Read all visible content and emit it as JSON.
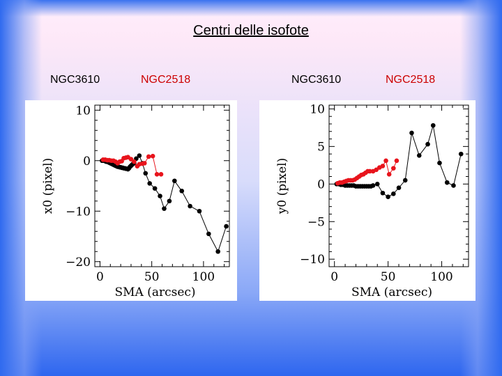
{
  "slide": {
    "title": "Centri delle isofote"
  },
  "labels": [
    {
      "text": "NGC3610",
      "color": "#000000"
    },
    {
      "text": "NGC2518",
      "color": "#cc0000"
    },
    {
      "text": "NGC3610",
      "color": "#000000"
    },
    {
      "text": "NGC2518",
      "color": "#cc0000"
    }
  ],
  "colors": {
    "series_ngc3610": "#000000",
    "series_ngc2518": "#e8141c"
  },
  "chart_data": [
    {
      "type": "scatter",
      "title": "",
      "xlabel": "SMA  (arcsec)",
      "ylabel": "x0  (pixel)",
      "xlim": [
        -5,
        125
      ],
      "ylim": [
        -21,
        11
      ],
      "xticks": [
        0,
        50,
        100
      ],
      "yticks": [
        10,
        0,
        -10,
        -20
      ],
      "ytick_labels": [
        "10",
        "0",
        "−10",
        "−20"
      ],
      "series": [
        {
          "name": "NGC3610",
          "color": "#000000",
          "x": [
            2,
            3,
            4,
            5,
            6,
            7,
            8,
            9,
            10,
            11,
            12,
            13,
            14,
            15,
            16,
            17,
            18,
            19,
            20,
            21,
            22,
            23,
            24,
            25,
            26,
            27,
            28,
            29,
            30,
            31,
            32,
            33,
            35,
            38,
            41,
            44,
            48,
            53,
            58,
            62,
            67,
            72,
            79,
            87,
            96,
            105,
            114,
            122
          ],
          "y": [
            0,
            0,
            0,
            -0.1,
            -0.2,
            -0.2,
            -0.3,
            -0.4,
            -0.5,
            -0.6,
            -0.7,
            -0.8,
            -0.9,
            -1,
            -1.1,
            -1.2,
            -1.2,
            -1.3,
            -1.3,
            -1.4,
            -1.4,
            -1.5,
            -1.5,
            -1.6,
            -1.6,
            -1.7,
            -1.5,
            -1.2,
            -1.0,
            -0.8,
            -0.6,
            -0.5,
            0.4,
            1.0,
            -0.5,
            -2.5,
            -4.5,
            -5.5,
            -7.0,
            -9.5,
            -8.0,
            -4.0,
            -6.0,
            -9.0,
            -10.0,
            -14.5,
            -18.0,
            -13.0
          ],
          "linestyle": "solid"
        },
        {
          "name": "NGC2518",
          "color": "#e8141c",
          "x": [
            3,
            5,
            7,
            9,
            11,
            13,
            15,
            17,
            19,
            21,
            23,
            25,
            27,
            30,
            33,
            36,
            38,
            41,
            43,
            47,
            51,
            55,
            59
          ],
          "y": [
            0.2,
            0.2,
            0.1,
            0.1,
            0,
            0,
            -0.2,
            -0.5,
            -0.2,
            -0.1,
            0.5,
            0.6,
            0.7,
            0.3,
            -0.2,
            -1.1,
            -0.7,
            -0.6,
            -0.5,
            0.8,
            0.9,
            -2.7,
            -2.7
          ],
          "linestyle": "solid"
        }
      ]
    },
    {
      "type": "scatter",
      "title": "",
      "xlabel": "SMA  (arcsec)",
      "ylabel": "y0  (pixel)",
      "xlim": [
        -5,
        125
      ],
      "ylim": [
        -11,
        10.5
      ],
      "xticks": [
        0,
        50,
        100
      ],
      "yticks": [
        10,
        5,
        0,
        -5,
        -10
      ],
      "ytick_labels": [
        "10",
        "5",
        "0",
        "−5",
        "−10"
      ],
      "series": [
        {
          "name": "NGC3610",
          "color": "#000000",
          "x": [
            2,
            4,
            6,
            8,
            10,
            12,
            14,
            16,
            18,
            20,
            22,
            24,
            26,
            28,
            30,
            32,
            34,
            36,
            40,
            45,
            50,
            55,
            60,
            66,
            72,
            79,
            87,
            92,
            98,
            105,
            111,
            118
          ],
          "y": [
            0,
            0,
            -0.1,
            -0.1,
            -0.2,
            -0.2,
            -0.2,
            -0.2,
            -0.2,
            -0.3,
            -0.3,
            -0.3,
            -0.3,
            -0.3,
            -0.3,
            -0.3,
            -0.3,
            -0.2,
            0,
            -1.2,
            -1.7,
            -1.3,
            -0.5,
            0.5,
            6.8,
            3.8,
            5.3,
            7.8,
            2.8,
            0.2,
            -0.2,
            4.0
          ],
          "linestyle": "solid"
        },
        {
          "name": "NGC2518",
          "color": "#e8141c",
          "x": [
            3,
            5,
            7,
            9,
            11,
            13,
            15,
            17,
            19,
            21,
            23,
            25,
            27,
            29,
            31,
            33,
            36,
            39,
            42,
            45,
            48,
            51,
            55,
            58
          ],
          "y": [
            0.1,
            0.2,
            0.2,
            0.3,
            0.4,
            0.5,
            0.5,
            0.5,
            0.6,
            0.8,
            1.0,
            1.2,
            1.3,
            1.5,
            1.7,
            1.7,
            1.7,
            1.9,
            2.2,
            2.4,
            3.1,
            1.3,
            2.1,
            3.1
          ],
          "linestyle": "solid"
        }
      ]
    }
  ]
}
